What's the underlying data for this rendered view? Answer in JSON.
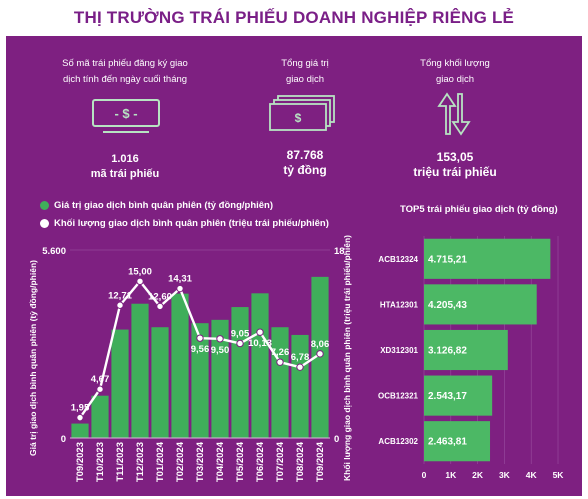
{
  "title": "THỊ TRƯỜNG TRÁI PHIẾU DOANH NGHIỆP RIÊNG LẺ",
  "stats": [
    {
      "label_l1": "Số mã trái phiếu đăng ký giao",
      "label_l2": "dịch tính đến ngày cuối tháng",
      "value": "1.016",
      "unit": "mã trái phiếu"
    },
    {
      "label_l1": "Tổng giá trị",
      "label_l2": "giao dịch",
      "value": "87.768",
      "unit": "tỷ đồng"
    },
    {
      "label_l1": "Tổng khối lượng",
      "label_l2": "giao dịch",
      "value": "153,05",
      "unit": "triệu trái phiếu"
    }
  ],
  "icons": {
    "cash": "cash-icon",
    "money_stack": "money-stack-icon",
    "exchange": "up-down-arrows-icon"
  },
  "colors": {
    "panel": "#7e2081",
    "title": "#7a1f87",
    "bar": "#3fae5a",
    "bar_right": "#4cb865",
    "line": "#ffffff"
  },
  "chart_data": [
    {
      "type": "bar",
      "categories": [
        "T09/2023",
        "T10/2023",
        "T11/2023",
        "T12/2023",
        "T01/2024",
        "T02/2024",
        "T03/2024",
        "T04/2024",
        "T05/2024",
        "T06/2024",
        "T07/2024",
        "T08/2024",
        "T09/2024"
      ],
      "series": [
        {
          "name": "Giá trị giao dịch bình quân phiên (tỷ đồng/phiên)",
          "type": "bar",
          "axis": "left",
          "values": [
            430,
            1260,
            3230,
            4000,
            3300,
            4300,
            3420,
            3520,
            3900,
            4310,
            3300,
            3070,
            4800
          ]
        },
        {
          "name": "Khối lượng giao dịch bình quân phiên (triệu trái phiếu/phiên)",
          "type": "line",
          "axis": "right",
          "values": [
            1.95,
            4.67,
            12.71,
            15.0,
            12.6,
            14.31,
            9.56,
            9.5,
            9.05,
            10.13,
            7.26,
            6.78,
            8.06
          ],
          "labels": [
            "1,95",
            "4,67",
            "12,71",
            "15,00",
            "12,60",
            "14,31",
            "9,56",
            "9,50",
            "9,05",
            "10,13",
            "7,26",
            "6,78",
            "8,06"
          ]
        }
      ],
      "ylabel": "Giá trị giao dịch bình quân phiên (tỷ đồng/phiên)",
      "y2label": "Khối lượng giao dịch bình quân phiên (triệu trái phiếu/phiên)",
      "ylim": [
        0,
        5600
      ],
      "y2lim": [
        0,
        18
      ],
      "ytick_labels": [
        "0",
        "5.600"
      ],
      "y2tick_labels": [
        "0",
        "18"
      ],
      "legend": "top"
    },
    {
      "type": "bar",
      "orientation": "horizontal",
      "title": "TOP5 trái phiếu giao dịch (tỷ đồng)",
      "categories": [
        "ACB12324",
        "HTA12301",
        "XD312301",
        "OCB12321",
        "ACB12302"
      ],
      "values": [
        4715.21,
        4205.43,
        3126.82,
        2543.17,
        2463.81
      ],
      "labels": [
        "4.715,21",
        "4.205,43",
        "3.126,82",
        "2.543,17",
        "2.463,81"
      ],
      "xlim": [
        0,
        5000
      ],
      "xtick_labels": [
        "0",
        "1K",
        "2K",
        "3K",
        "4K",
        "5K"
      ]
    }
  ]
}
